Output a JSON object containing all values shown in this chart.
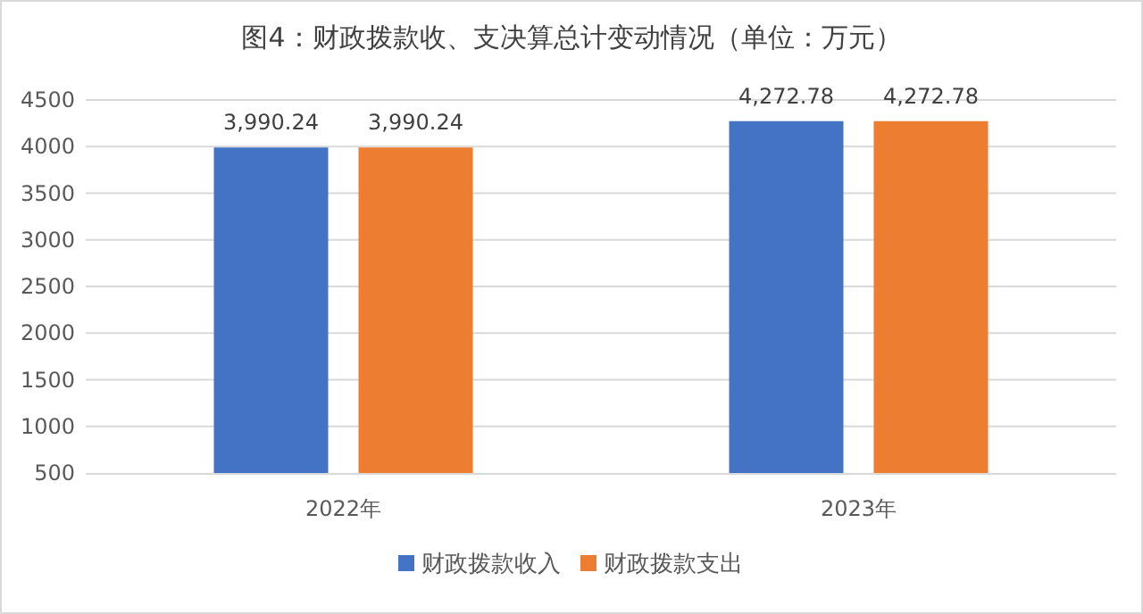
{
  "chart_data": {
    "type": "bar",
    "title": "图4：财政拨款收、支决算总计变动情况（单位：万元）",
    "categories": [
      "2022年",
      "2023年"
    ],
    "series": [
      {
        "name": "财政拨款收入",
        "color": "#4472c4",
        "values": [
          3990.24,
          4272.78
        ],
        "value_labels": [
          "3,990.24",
          "4,272.78"
        ]
      },
      {
        "name": "财政拨款支出",
        "color": "#ed7d31",
        "values": [
          3990.24,
          4272.78
        ],
        "value_labels": [
          "3,990.24",
          "4,272.78"
        ]
      }
    ],
    "ylim": [
      500,
      4500
    ],
    "yticks": [
      500,
      1000,
      1500,
      2000,
      2500,
      3000,
      3500,
      4000,
      4500
    ],
    "grid": "y",
    "legend": "bottom"
  }
}
